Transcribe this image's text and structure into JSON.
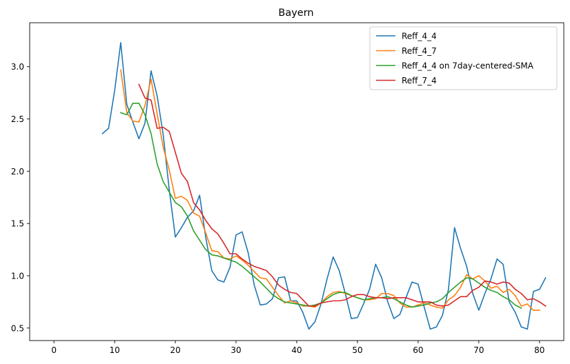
{
  "chart_data": {
    "type": "line",
    "title": "Bayern",
    "xlabel": "",
    "ylabel": "",
    "xlim": [
      -4,
      84
    ],
    "ylim": [
      0.38,
      3.42
    ],
    "xticks": [
      0,
      10,
      20,
      30,
      40,
      50,
      60,
      70,
      80
    ],
    "yticks": [
      0.5,
      1.0,
      1.5,
      2.0,
      2.5,
      3.0
    ],
    "xtick_labels": [
      "0",
      "10",
      "20",
      "30",
      "40",
      "50",
      "60",
      "70",
      "80"
    ],
    "ytick_labels": [
      "0.5",
      "1.0",
      "1.5",
      "2.0",
      "2.5",
      "3.0"
    ],
    "grid": false,
    "legend_position": "top-right",
    "series": [
      {
        "name": "Reff_4_4",
        "color": "#1f77b4",
        "x_start": 8,
        "values": [
          2.36,
          2.41,
          2.77,
          3.23,
          2.64,
          2.47,
          2.31,
          2.46,
          2.96,
          2.72,
          2.35,
          1.82,
          1.37,
          1.46,
          1.56,
          1.62,
          1.77,
          1.37,
          1.05,
          0.96,
          0.94,
          1.08,
          1.39,
          1.42,
          1.22,
          0.91,
          0.72,
          0.73,
          0.78,
          0.98,
          0.99,
          0.76,
          0.76,
          0.65,
          0.49,
          0.56,
          0.73,
          0.97,
          1.18,
          1.05,
          0.83,
          0.59,
          0.6,
          0.73,
          0.87,
          1.11,
          0.98,
          0.75,
          0.59,
          0.63,
          0.79,
          0.94,
          0.92,
          0.7,
          0.49,
          0.51,
          0.62,
          0.87,
          1.46,
          1.26,
          1.09,
          0.83,
          0.67,
          0.83,
          0.97,
          1.16,
          1.11,
          0.75,
          0.65,
          0.51,
          0.49,
          0.85,
          0.87,
          0.98
        ]
      },
      {
        "name": "Reff_4_7",
        "color": "#ff7f0e",
        "x_start": 11,
        "values": [
          2.97,
          2.56,
          2.48,
          2.47,
          2.63,
          2.88,
          2.55,
          2.23,
          2.01,
          1.74,
          1.76,
          1.72,
          1.6,
          1.57,
          1.41,
          1.24,
          1.23,
          1.17,
          1.16,
          1.19,
          1.15,
          1.1,
          1.04,
          0.98,
          0.97,
          0.89,
          0.81,
          0.74,
          0.76,
          0.74,
          0.71,
          0.71,
          0.7,
          0.74,
          0.8,
          0.84,
          0.85,
          0.83,
          0.81,
          0.79,
          0.77,
          0.77,
          0.78,
          0.83,
          0.83,
          0.81,
          0.74,
          0.7,
          0.7,
          0.72,
          0.74,
          0.72,
          0.7,
          0.69,
          0.77,
          0.81,
          0.89,
          1.01,
          0.97,
          1.0,
          0.95,
          0.88,
          0.9,
          0.84,
          0.87,
          0.81,
          0.71,
          0.73,
          0.67,
          0.67
        ]
      },
      {
        "name": "Reff_4_4 on 7day-centered-SMA",
        "color": "#2ca02c",
        "x_start": 11,
        "values": [
          2.56,
          2.54,
          2.65,
          2.65,
          2.54,
          2.36,
          2.07,
          1.9,
          1.8,
          1.7,
          1.66,
          1.57,
          1.43,
          1.34,
          1.25,
          1.2,
          1.19,
          1.17,
          1.15,
          1.13,
          1.09,
          1.04,
          0.99,
          0.94,
          0.88,
          0.82,
          0.78,
          0.75,
          0.74,
          0.73,
          0.72,
          0.71,
          0.72,
          0.74,
          0.78,
          0.82,
          0.84,
          0.84,
          0.81,
          0.79,
          0.77,
          0.78,
          0.79,
          0.79,
          0.8,
          0.78,
          0.75,
          0.72,
          0.7,
          0.71,
          0.72,
          0.74,
          0.75,
          0.78,
          0.84,
          0.89,
          0.94,
          0.98,
          0.97,
          0.93,
          0.89,
          0.86,
          0.84,
          0.8,
          0.77,
          0.72,
          0.69
        ]
      },
      {
        "name": "Reff_7_4",
        "color": "#d62728",
        "x_start": 14,
        "values": [
          2.83,
          2.7,
          2.68,
          2.41,
          2.42,
          2.38,
          2.18,
          1.98,
          1.9,
          1.7,
          1.63,
          1.53,
          1.45,
          1.4,
          1.31,
          1.21,
          1.21,
          1.16,
          1.12,
          1.09,
          1.07,
          1.05,
          0.99,
          0.91,
          0.87,
          0.84,
          0.83,
          0.77,
          0.71,
          0.71,
          0.74,
          0.75,
          0.76,
          0.76,
          0.77,
          0.8,
          0.82,
          0.82,
          0.8,
          0.79,
          0.79,
          0.78,
          0.79,
          0.79,
          0.79,
          0.77,
          0.75,
          0.75,
          0.75,
          0.72,
          0.71,
          0.72,
          0.76,
          0.8,
          0.8,
          0.86,
          0.89,
          0.95,
          0.94,
          0.92,
          0.94,
          0.93,
          0.87,
          0.83,
          0.77,
          0.78,
          0.75,
          0.71
        ]
      }
    ]
  }
}
